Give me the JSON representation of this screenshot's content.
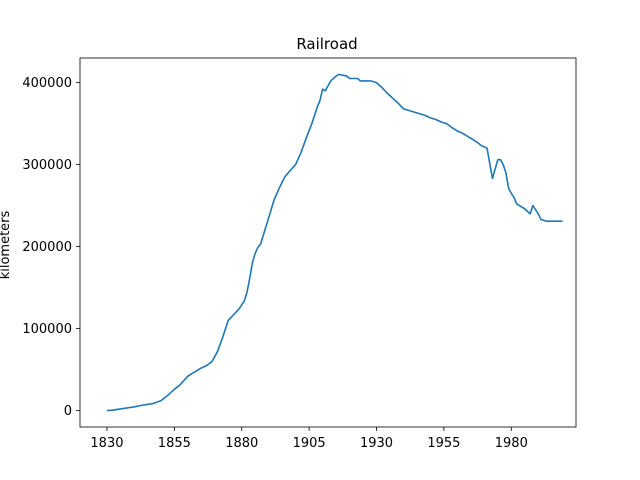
{
  "chart_data": {
    "type": "line",
    "title": "Railroad",
    "xlabel": "",
    "ylabel": "kilometers",
    "xlim": [
      1820,
      2004
    ],
    "ylim": [
      -20000,
      430000
    ],
    "xticks": [
      1830,
      1855,
      1880,
      1905,
      1930,
      1955,
      1980
    ],
    "yticks": [
      0,
      100000,
      200000,
      300000,
      400000
    ],
    "grid": false,
    "series": [
      {
        "color": "#1f77b4",
        "x": [
          1830,
          1832,
          1835,
          1838,
          1840,
          1843,
          1845,
          1847,
          1850,
          1852,
          1853,
          1855,
          1857,
          1860,
          1863,
          1865,
          1867,
          1869,
          1871,
          1873,
          1875,
          1877,
          1879,
          1881,
          1882,
          1883,
          1884,
          1885,
          1886,
          1887,
          1888,
          1890,
          1892,
          1894,
          1896,
          1898,
          1900,
          1902,
          1904,
          1906,
          1908,
          1909,
          1910,
          1911,
          1913,
          1915,
          1916,
          1919,
          1920,
          1923,
          1924,
          1926,
          1928,
          1930,
          1932,
          1934,
          1936,
          1938,
          1940,
          1942,
          1944,
          1946,
          1948,
          1950,
          1952,
          1954,
          1956,
          1958,
          1960,
          1962,
          1963,
          1965,
          1967,
          1969,
          1971,
          1973,
          1975,
          1976,
          1977,
          1978,
          1979,
          1980,
          1981,
          1982,
          1984,
          1985,
          1987,
          1988,
          1989,
          1990,
          1991,
          1993,
          1994,
          1996,
          1997,
          1999
        ],
        "y": [
          0,
          500,
          2000,
          3500,
          4500,
          6500,
          7500,
          8500,
          12000,
          17000,
          20000,
          26000,
          31000,
          42000,
          48000,
          52000,
          55000,
          60000,
          72000,
          90000,
          110000,
          117000,
          124000,
          134000,
          145000,
          162000,
          181000,
          192000,
          199000,
          203000,
          214000,
          235000,
          257000,
          272000,
          285000,
          293000,
          300000,
          315000,
          333000,
          350000,
          370000,
          378000,
          392000,
          390000,
          402000,
          408000,
          410000,
          408000,
          405000,
          405000,
          402000,
          402000,
          402000,
          400000,
          394000,
          387000,
          381000,
          375000,
          368000,
          366000,
          364000,
          362000,
          360000,
          357000,
          355000,
          352000,
          350000,
          345000,
          341000,
          338000,
          336000,
          332000,
          328000,
          323000,
          320000,
          283000,
          306000,
          306000,
          300000,
          290000,
          271000,
          265000,
          260000,
          252000,
          248000,
          246000,
          240000,
          250000,
          245000,
          240000,
          233000,
          231000,
          231000,
          231000,
          231000,
          231000
        ]
      }
    ]
  }
}
